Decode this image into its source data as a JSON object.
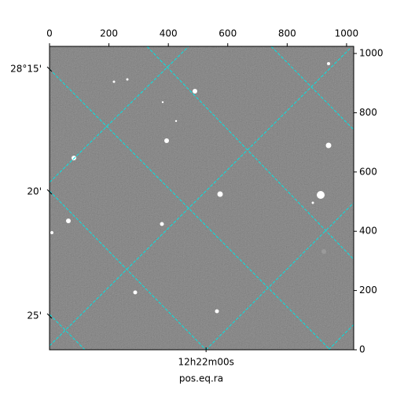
{
  "chart_data": {
    "type": "image",
    "xlabel": "pos.eq.ra",
    "xlim": [
      0,
      1024
    ],
    "ylim": [
      0,
      1024
    ],
    "xticks": [
      0,
      200,
      400,
      600,
      800,
      1000
    ],
    "yticks": [
      0,
      200,
      400,
      600,
      800,
      1000
    ],
    "dec_ticks": [
      {
        "value": 947,
        "label": "28°15'"
      },
      {
        "value": 533,
        "label": "20'"
      },
      {
        "value": 114,
        "label": "25'"
      }
    ],
    "ra_ticks": [
      {
        "value": 527,
        "label": "12h22m00s"
      }
    ],
    "grid": true,
    "grid_color": "#00e5e5"
  }
}
